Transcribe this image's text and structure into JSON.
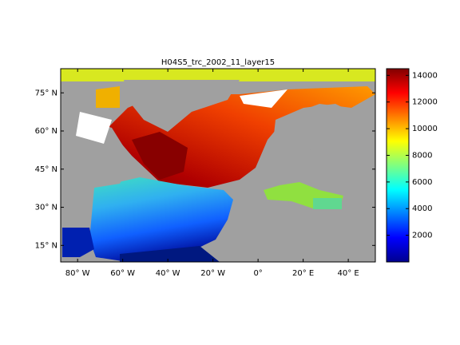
{
  "title": "H04S5_trc_2002_11_layer15",
  "map": {
    "xlim": [
      -87.5,
      52
    ],
    "ylim": [
      8.5,
      84.5
    ],
    "xticks": [
      {
        "value": -80,
        "label": "80° W"
      },
      {
        "value": -60,
        "label": "60° W"
      },
      {
        "value": -40,
        "label": "40° W"
      },
      {
        "value": -20,
        "label": "20° W"
      },
      {
        "value": 0,
        "label": "0°"
      },
      {
        "value": 20,
        "label": "20° E"
      },
      {
        "value": 40,
        "label": "40° E"
      }
    ],
    "yticks": [
      {
        "value": 15,
        "label": "15° N"
      },
      {
        "value": 30,
        "label": "30° N"
      },
      {
        "value": 45,
        "label": "45° N"
      },
      {
        "value": 60,
        "label": "60° N"
      },
      {
        "value": 75,
        "label": "75° N"
      }
    ]
  },
  "colorbar": {
    "clim": [
      0,
      14500
    ],
    "ticks": [
      2000,
      4000,
      6000,
      8000,
      10000,
      12000,
      14000
    ]
  }
}
